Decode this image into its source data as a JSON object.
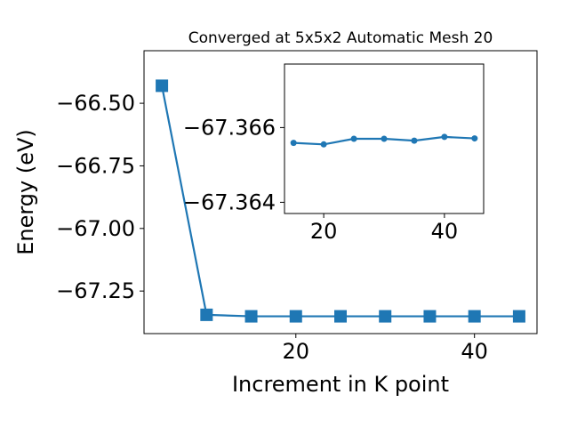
{
  "chart_data": [
    {
      "type": "line",
      "title": "Converged at 5x5x2 Automatic Mesh 20",
      "xlabel": "Increment in K point",
      "ylabel": "Energy (eV)",
      "x": [
        5,
        10,
        15,
        20,
        25,
        30,
        35,
        40,
        45
      ],
      "series": [
        {
          "values": [
            -66.43,
            -67.345,
            -67.351,
            -67.351,
            -67.351,
            -67.351,
            -67.351,
            -67.351,
            -67.351
          ]
        }
      ],
      "xlim": [
        3.0,
        47.0
      ],
      "ylim": [
        -67.42,
        -66.29
      ],
      "xticks": [
        20,
        40
      ],
      "xtick_labels": [
        "20",
        "40"
      ],
      "yticks": [
        -66.5,
        -66.75,
        -67.0,
        -67.25
      ],
      "ytick_labels": [
        "−66.50",
        "−66.75",
        "−67.00",
        "−67.25"
      ],
      "marker": "square",
      "color": "#1f77b4",
      "grid": false
    },
    {
      "type": "line",
      "title": "",
      "xlabel": "",
      "ylabel": "",
      "x": [
        15,
        20,
        25,
        30,
        35,
        40,
        45
      ],
      "series": [
        {
          "values": [
            -67.36559,
            -67.36555,
            -67.3657,
            -67.3657,
            -67.36565,
            -67.36575,
            -67.36571
          ]
        }
      ],
      "xlim": [
        13.5,
        46.5
      ],
      "ylim": [
        -67.3637,
        -67.3677
      ],
      "xticks": [
        20,
        40
      ],
      "xtick_labels": [
        "20",
        "40"
      ],
      "yticks": [
        -67.366,
        -67.364
      ],
      "ytick_labels": [
        "−67.366",
        "−67.364"
      ],
      "marker": "circle",
      "color": "#1f77b4",
      "grid": false
    }
  ]
}
